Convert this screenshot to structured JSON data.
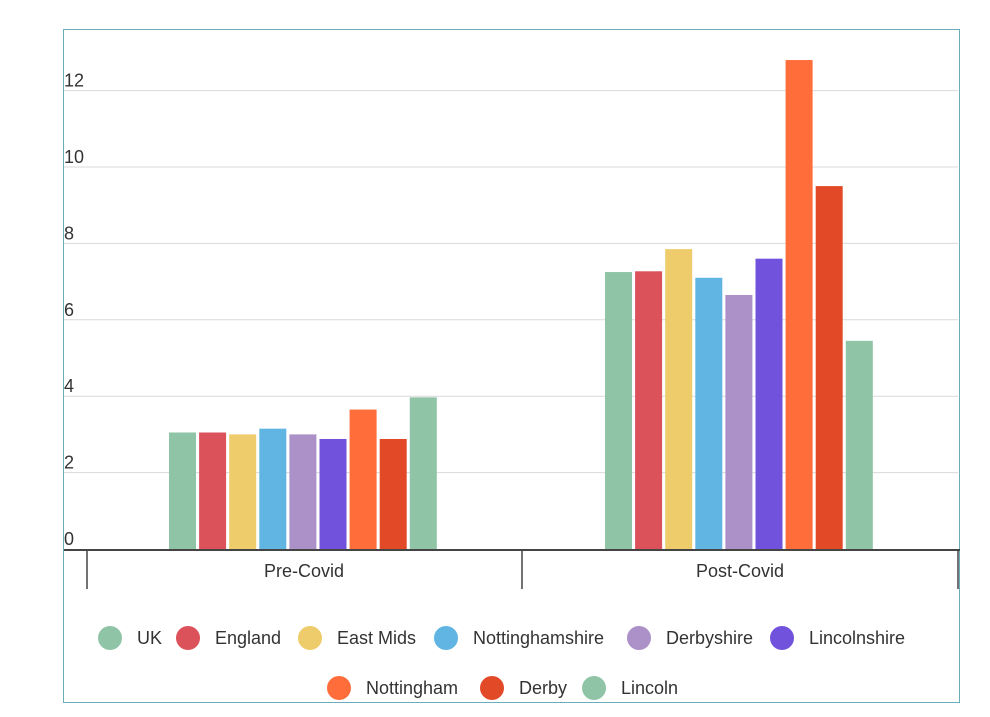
{
  "chart_data": {
    "type": "bar",
    "title": "",
    "xlabel": "",
    "ylabel": "",
    "categories": [
      "Pre-Covid",
      "Post-Covid"
    ],
    "ylim": [
      0,
      13
    ],
    "yticks": [
      "0",
      "2",
      "4",
      "6",
      "8",
      "10",
      "12"
    ],
    "grid": true,
    "legend_position": "bottom",
    "series": [
      {
        "name": "UK",
        "color": "#8fc4a6",
        "values": [
          3.05,
          7.25
        ]
      },
      {
        "name": "England",
        "color": "#db525b",
        "values": [
          3.05,
          7.27
        ]
      },
      {
        "name": "East Mids",
        "color": "#efcc6b",
        "values": [
          3.0,
          7.85
        ]
      },
      {
        "name": "Nottinghamshire",
        "color": "#60b5e3",
        "values": [
          3.15,
          7.1
        ]
      },
      {
        "name": "Derbyshire",
        "color": "#ab91c8",
        "values": [
          3.0,
          6.65
        ]
      },
      {
        "name": "Lincolnshire",
        "color": "#7152dd",
        "values": [
          2.88,
          7.6
        ]
      },
      {
        "name": "Nottingham",
        "color": "#ff6d3b",
        "values": [
          3.65,
          12.8
        ]
      },
      {
        "name": "Derby",
        "color": "#e24a27",
        "values": [
          2.88,
          9.5
        ]
      },
      {
        "name": "Lincoln",
        "color": "#8fc4a6",
        "values": [
          3.97,
          5.45
        ]
      }
    ]
  }
}
